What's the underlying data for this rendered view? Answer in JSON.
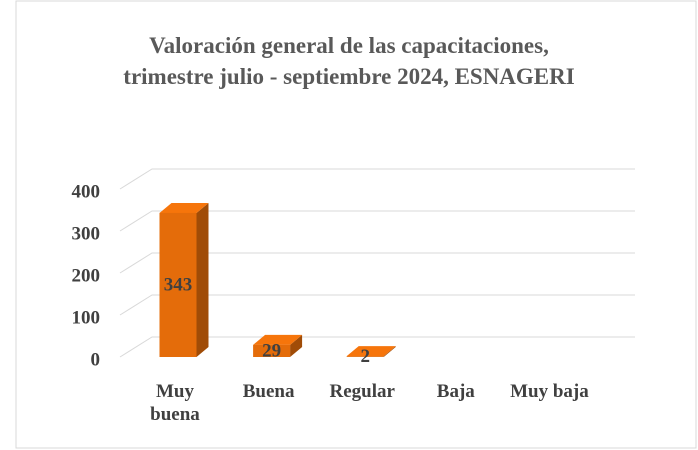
{
  "chart_data": {
    "type": "bar3d",
    "title": "Valoración general de las capacitaciones, trimestre julio - septiembre 2024, ESNAGERI",
    "categories": [
      "Muy buena",
      "Buena",
      "Regular",
      "Baja",
      "Muy baja"
    ],
    "values": [
      343,
      29,
      2,
      null,
      null
    ],
    "color": "#e46c0a",
    "ylim": [
      0,
      400
    ],
    "yticks": [
      0,
      100,
      200,
      300,
      400
    ],
    "grid": true
  }
}
